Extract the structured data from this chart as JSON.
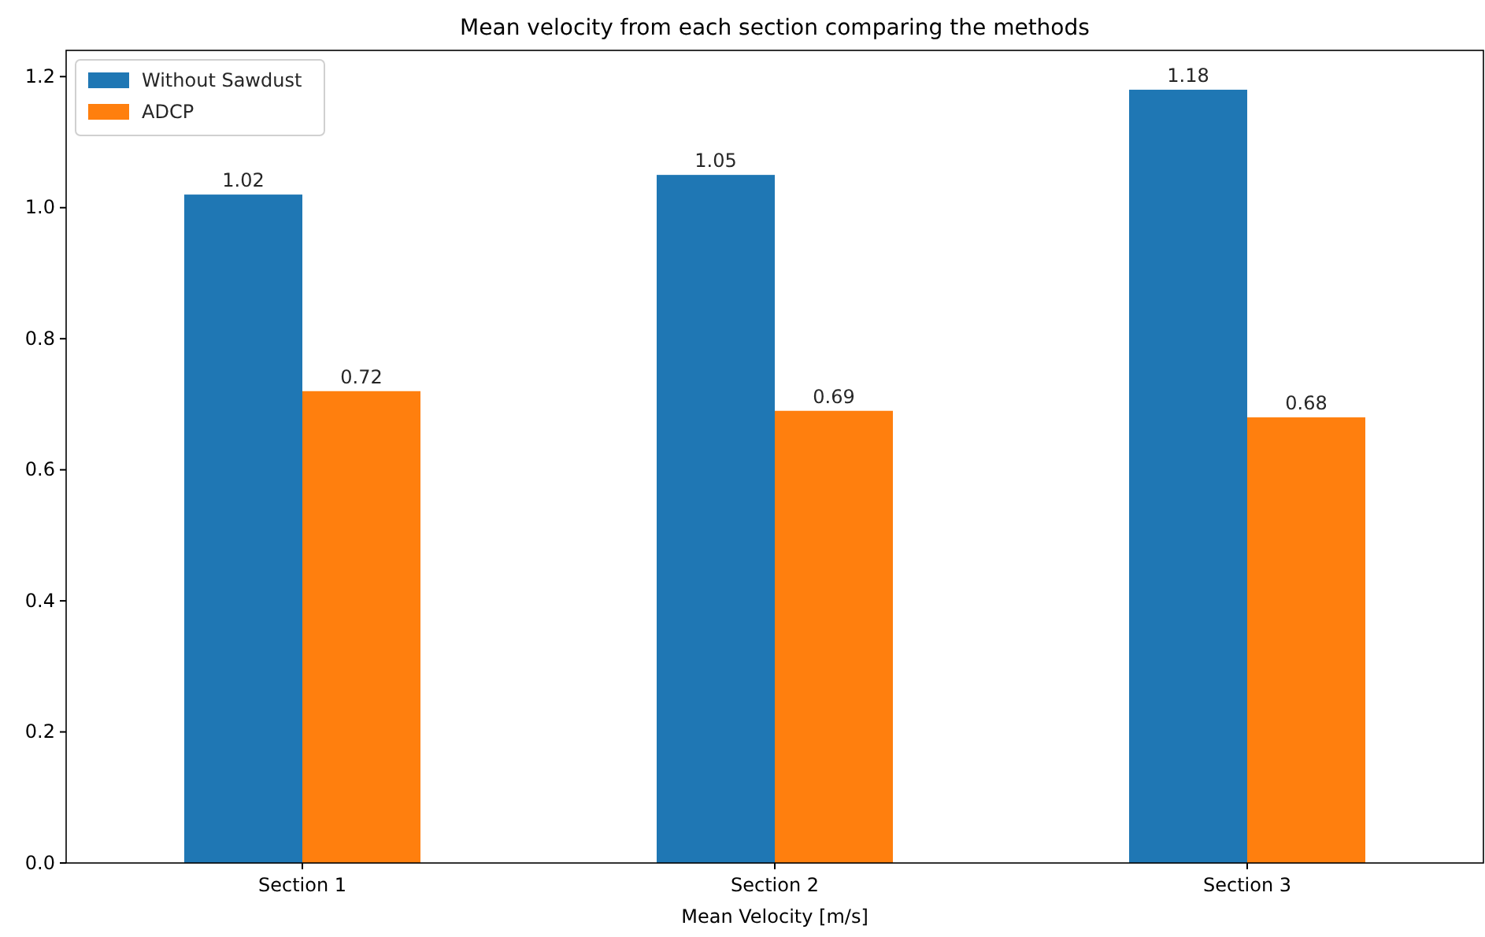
{
  "chart_data": {
    "type": "bar",
    "title": "Mean velocity from each section comparing the methods",
    "xlabel": "Mean Velocity [m/s]",
    "categories": [
      "Section 1",
      "Section 2",
      "Section 3"
    ],
    "series": [
      {
        "name": "Without Sawdust",
        "color": "#1f77b4",
        "values": [
          1.02,
          1.05,
          1.18
        ]
      },
      {
        "name": "ADCP",
        "color": "#ff7f0e",
        "values": [
          0.72,
          0.69,
          0.68
        ]
      }
    ],
    "ylim": [
      0,
      1.24
    ],
    "yticks": [
      {
        "value": 0,
        "label": "0.0"
      },
      {
        "value": 0.2,
        "label": "0.2"
      },
      {
        "value": 0.4,
        "label": "0.4"
      },
      {
        "value": 0.6,
        "label": "0.6"
      },
      {
        "value": 0.8,
        "label": "0.8"
      },
      {
        "value": 1,
        "label": "1.0"
      },
      {
        "value": 1.2,
        "label": "1.2"
      }
    ],
    "data_labels": true,
    "legend": "top left",
    "grid": false
  }
}
